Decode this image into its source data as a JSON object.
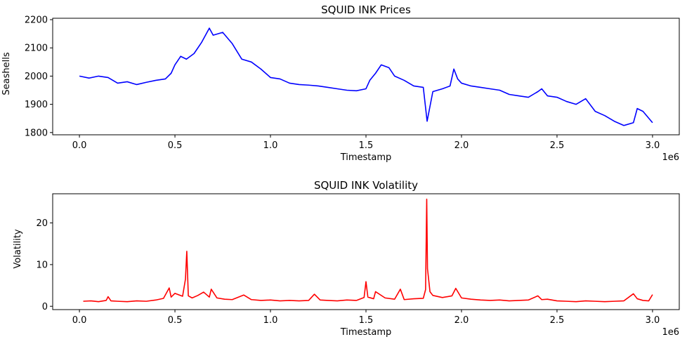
{
  "chart_data": [
    {
      "type": "line",
      "title": "SQUID INK Prices",
      "xlabel": "Timestamp",
      "ylabel": "Seashells",
      "x_offset_text": "1e6",
      "xlim": [
        -140000,
        3140000
      ],
      "ylim": [
        1792,
        2205
      ],
      "xticks": [
        0,
        500000,
        1000000,
        1500000,
        2000000,
        2500000,
        3000000
      ],
      "xtick_labels": [
        "0.0",
        "0.5",
        "1.0",
        "1.5",
        "2.0",
        "2.5",
        "3.0"
      ],
      "yticks": [
        1800,
        1900,
        2000,
        2100,
        2200
      ],
      "ytick_labels": [
        "1800",
        "1900",
        "2000",
        "2100",
        "2200"
      ],
      "grid": false,
      "color": "#0000ff",
      "x": [
        0,
        50000,
        100000,
        150000,
        200000,
        250000,
        300000,
        350000,
        400000,
        450000,
        480000,
        500000,
        530000,
        560000,
        600000,
        640000,
        680000,
        700000,
        750000,
        800000,
        850000,
        900000,
        950000,
        1000000,
        1050000,
        1100000,
        1150000,
        1200000,
        1250000,
        1300000,
        1350000,
        1400000,
        1450000,
        1500000,
        1520000,
        1550000,
        1580000,
        1620000,
        1650000,
        1700000,
        1750000,
        1800000,
        1820000,
        1850000,
        1900000,
        1940000,
        1960000,
        1980000,
        2000000,
        2050000,
        2100000,
        2150000,
        2200000,
        2250000,
        2300000,
        2350000,
        2400000,
        2420000,
        2450000,
        2500000,
        2550000,
        2600000,
        2650000,
        2700000,
        2750000,
        2800000,
        2850000,
        2900000,
        2920000,
        2950000,
        3000000
      ],
      "y": [
        2000,
        1993,
        2000,
        1995,
        1975,
        1980,
        1970,
        1978,
        1985,
        1990,
        2010,
        2040,
        2070,
        2060,
        2080,
        2120,
        2170,
        2145,
        2155,
        2115,
        2060,
        2050,
        2025,
        1995,
        1990,
        1975,
        1970,
        1968,
        1965,
        1960,
        1955,
        1950,
        1948,
        1955,
        1985,
        2010,
        2040,
        2030,
        2000,
        1985,
        1965,
        1960,
        1840,
        1945,
        1955,
        1965,
        2025,
        1990,
        1975,
        1965,
        1960,
        1955,
        1950,
        1935,
        1930,
        1925,
        1945,
        1955,
        1930,
        1925,
        1910,
        1900,
        1920,
        1875,
        1860,
        1840,
        1825,
        1835,
        1885,
        1875,
        1835
      ]
    },
    {
      "type": "line",
      "title": "SQUID INK Volatility",
      "xlabel": "Timestamp",
      "ylabel": "Volatility",
      "x_offset_text": "1e6",
      "xlim": [
        -140000,
        3140000
      ],
      "ylim": [
        -0.8,
        27
      ],
      "xticks": [
        0,
        500000,
        1000000,
        1500000,
        2000000,
        2500000,
        3000000
      ],
      "xtick_labels": [
        "0.0",
        "0.5",
        "1.0",
        "1.5",
        "2.0",
        "2.5",
        "3.0"
      ],
      "yticks": [
        0,
        10,
        20
      ],
      "ytick_labels": [
        "0",
        "10",
        "20"
      ],
      "grid": false,
      "color": "#ff0000",
      "x": [
        20000,
        60000,
        100000,
        140000,
        150000,
        165000,
        200000,
        250000,
        300000,
        350000,
        400000,
        440000,
        470000,
        480000,
        500000,
        540000,
        555000,
        562000,
        570000,
        590000,
        620000,
        650000,
        680000,
        690000,
        720000,
        760000,
        800000,
        860000,
        900000,
        950000,
        1000000,
        1050000,
        1100000,
        1150000,
        1200000,
        1230000,
        1260000,
        1300000,
        1350000,
        1400000,
        1450000,
        1490000,
        1500000,
        1510000,
        1540000,
        1550000,
        1600000,
        1650000,
        1680000,
        1700000,
        1750000,
        1800000,
        1812000,
        1818000,
        1822000,
        1835000,
        1850000,
        1900000,
        1950000,
        1970000,
        2000000,
        2050000,
        2100000,
        2150000,
        2200000,
        2250000,
        2300000,
        2350000,
        2400000,
        2420000,
        2450000,
        2500000,
        2550000,
        2600000,
        2650000,
        2700000,
        2750000,
        2800000,
        2850000,
        2900000,
        2920000,
        2950000,
        2980000,
        3000000
      ],
      "y": [
        1.2,
        1.3,
        1.1,
        1.4,
        2.3,
        1.3,
        1.2,
        1.1,
        1.3,
        1.2,
        1.5,
        1.9,
        4.4,
        2.2,
        3.1,
        2.4,
        6.5,
        13.2,
        2.5,
        2.0,
        2.6,
        3.4,
        2.2,
        4.1,
        2.0,
        1.7,
        1.6,
        2.7,
        1.6,
        1.4,
        1.5,
        1.3,
        1.4,
        1.3,
        1.4,
        2.9,
        1.5,
        1.4,
        1.3,
        1.5,
        1.4,
        2.1,
        5.9,
        2.2,
        1.8,
        3.5,
        2.0,
        1.7,
        4.1,
        1.6,
        1.8,
        1.9,
        4.0,
        25.7,
        9.0,
        3.5,
        2.6,
        2.1,
        2.5,
        4.3,
        2.0,
        1.7,
        1.5,
        1.4,
        1.5,
        1.3,
        1.4,
        1.5,
        2.5,
        1.6,
        1.7,
        1.3,
        1.2,
        1.1,
        1.3,
        1.2,
        1.1,
        1.2,
        1.3,
        3.0,
        1.8,
        1.4,
        1.3,
        2.8
      ]
    }
  ]
}
